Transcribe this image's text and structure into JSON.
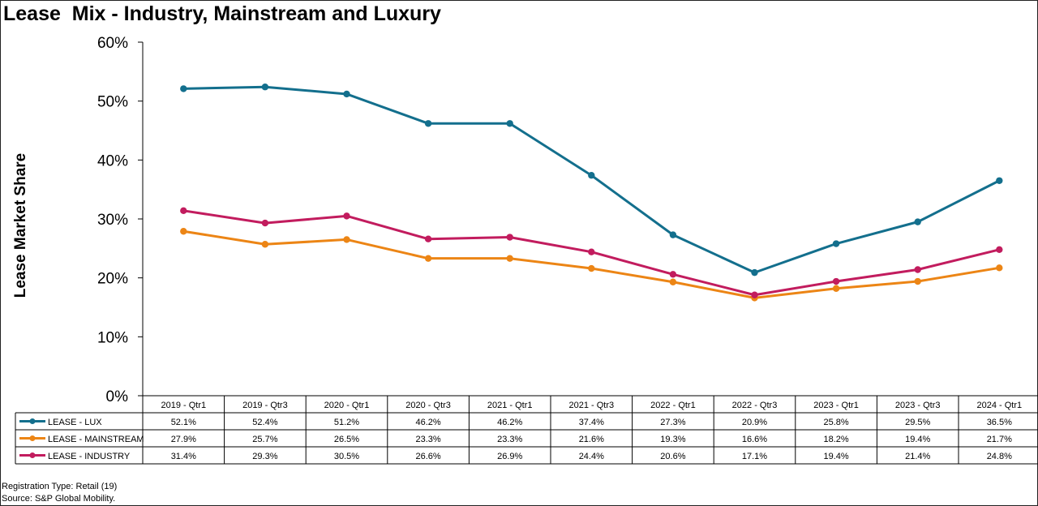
{
  "chart_data": {
    "type": "line",
    "title": "Lease  Mix - Industry, Mainstream and Luxury",
    "ylabel": "Lease Market Share",
    "xlabel": "",
    "ylim": [
      0,
      60
    ],
    "yticks": [
      "0%",
      "10%",
      "20%",
      "30%",
      "40%",
      "50%",
      "60%"
    ],
    "ytick_values": [
      0,
      10,
      20,
      30,
      40,
      50,
      60
    ],
    "categories": [
      "2019 - Qtr1",
      "2019 - Qtr3",
      "2020 - Qtr1",
      "2020 - Qtr3",
      "2021 - Qtr1",
      "2021 - Qtr3",
      "2022 - Qtr1",
      "2022 - Qtr3",
      "2023 - Qtr1",
      "2023 - Qtr3",
      "2024 - Qtr1"
    ],
    "series": [
      {
        "name": "LEASE - LUX",
        "color": "#136f8d",
        "values": [
          52.1,
          52.4,
          51.2,
          46.2,
          46.2,
          37.4,
          27.3,
          20.9,
          25.8,
          29.5,
          36.5
        ],
        "labels": [
          "52.1%",
          "52.4%",
          "51.2%",
          "46.2%",
          "46.2%",
          "37.4%",
          "27.3%",
          "20.9%",
          "25.8%",
          "29.5%",
          "36.5%"
        ]
      },
      {
        "name": "LEASE - MAINSTREAM",
        "color": "#ec8515",
        "values": [
          27.9,
          25.7,
          26.5,
          23.3,
          23.3,
          21.6,
          19.3,
          16.6,
          18.2,
          19.4,
          21.7
        ],
        "labels": [
          "27.9%",
          "25.7%",
          "26.5%",
          "23.3%",
          "23.3%",
          "21.6%",
          "19.3%",
          "16.6%",
          "18.2%",
          "19.4%",
          "21.7%"
        ]
      },
      {
        "name": "LEASE - INDUSTRY",
        "color": "#c21c5e",
        "values": [
          31.4,
          29.3,
          30.5,
          26.6,
          26.9,
          24.4,
          20.6,
          17.1,
          19.4,
          21.4,
          24.8
        ],
        "labels": [
          "31.4%",
          "29.3%",
          "30.5%",
          "26.6%",
          "26.9%",
          "24.4%",
          "20.6%",
          "17.1%",
          "19.4%",
          "21.4%",
          "24.8%"
        ]
      }
    ],
    "grid": false,
    "legend": "data-table-below"
  },
  "footnotes": {
    "line1": "Registration Type: Retail (19)",
    "line2": "Source: S&P Global Mobility."
  }
}
